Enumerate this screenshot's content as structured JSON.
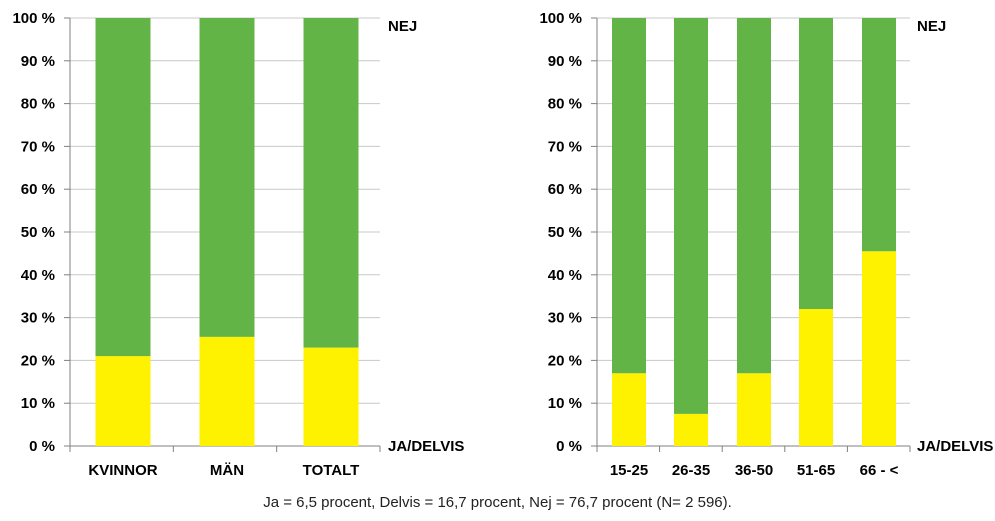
{
  "colors": {
    "ja_delvis": "#fff200",
    "nej": "#62b446",
    "grid": "#c8c8c8",
    "axis": "#808080"
  },
  "chart_data": [
    {
      "type": "bar",
      "stacked": true,
      "percent_stacked": true,
      "categories": [
        "KVINNOR",
        "MÄN",
        "TOTALT"
      ],
      "series": [
        {
          "name": "JA/DELVIS",
          "values": [
            21,
            25.5,
            23
          ]
        },
        {
          "name": "NEJ",
          "values": [
            79,
            74.5,
            77
          ]
        }
      ],
      "yticks": [
        "0 %",
        "10 %",
        "20 %",
        "30 %",
        "40 %",
        "50 %",
        "60 %",
        "70 %",
        "80 %",
        "90 %",
        "100 %"
      ],
      "ylim": [
        0,
        100
      ],
      "grid": true,
      "legend": "right (labels at top and bottom of axis)"
    },
    {
      "type": "bar",
      "stacked": true,
      "percent_stacked": true,
      "categories": [
        "15-25",
        "26-35",
        "36-50",
        "51-65",
        "66 - <"
      ],
      "series": [
        {
          "name": "JA/DELVIS",
          "values": [
            17,
            7.5,
            17,
            32,
            45.5
          ]
        },
        {
          "name": "NEJ",
          "values": [
            83,
            92.5,
            83,
            68,
            54.5
          ]
        }
      ],
      "yticks": [
        "0 %",
        "10 %",
        "20 %",
        "30 %",
        "40 %",
        "50 %",
        "60 %",
        "70 %",
        "80 %",
        "90 %",
        "100 %"
      ],
      "ylim": [
        0,
        100
      ],
      "grid": true,
      "legend": "right (labels at top and bottom of axis)"
    }
  ],
  "caption": "Ja = 6,5 procent, Delvis = 16,7 procent, Nej = 76,7 procent (N= 2 596)."
}
